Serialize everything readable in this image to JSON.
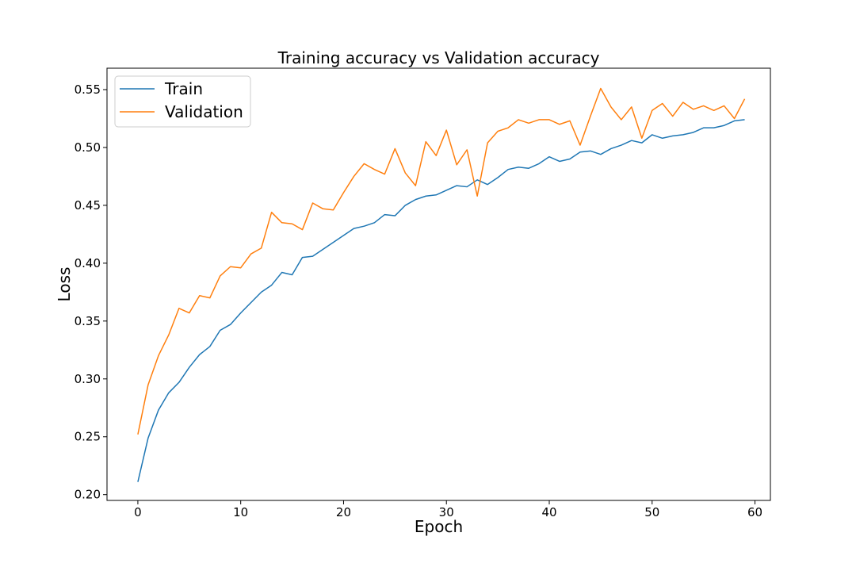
{
  "chart_data": {
    "type": "line",
    "title": "Training accuracy vs Validation accuracy",
    "xlabel": "Epoch",
    "ylabel": "Loss",
    "xlim": [
      -3,
      61.5
    ],
    "ylim": [
      0.195,
      0.5685
    ],
    "xticks": [
      0,
      10,
      20,
      30,
      40,
      50,
      60
    ],
    "yticks": [
      0.2,
      0.25,
      0.3,
      0.35,
      0.4,
      0.45,
      0.5,
      0.55
    ],
    "ytick_labels": [
      "0.20",
      "0.25",
      "0.30",
      "0.35",
      "0.40",
      "0.45",
      "0.50",
      "0.55"
    ],
    "grid": false,
    "legend": "top-left",
    "x": [
      0,
      1,
      2,
      3,
      4,
      5,
      6,
      7,
      8,
      9,
      10,
      11,
      12,
      13,
      14,
      15,
      16,
      17,
      18,
      19,
      20,
      21,
      22,
      23,
      24,
      25,
      26,
      27,
      28,
      29,
      30,
      31,
      32,
      33,
      34,
      35,
      36,
      37,
      38,
      39,
      40,
      41,
      42,
      43,
      44,
      45,
      46,
      47,
      48,
      49,
      50,
      51,
      52,
      53,
      54,
      55,
      56,
      57,
      58,
      59
    ],
    "series": [
      {
        "name": "Train",
        "color": "#1f77b4",
        "values": [
          0.211,
          0.249,
          0.273,
          0.288,
          0.297,
          0.31,
          0.321,
          0.328,
          0.342,
          0.347,
          0.357,
          0.366,
          0.375,
          0.381,
          0.392,
          0.39,
          0.405,
          0.406,
          0.412,
          0.418,
          0.424,
          0.43,
          0.432,
          0.435,
          0.442,
          0.441,
          0.45,
          0.455,
          0.458,
          0.459,
          0.463,
          0.467,
          0.466,
          0.472,
          0.468,
          0.474,
          0.481,
          0.483,
          0.482,
          0.486,
          0.492,
          0.488,
          0.49,
          0.496,
          0.497,
          0.494,
          0.499,
          0.502,
          0.506,
          0.504,
          0.511,
          0.508,
          0.51,
          0.511,
          0.513,
          0.517,
          0.517,
          0.519,
          0.523,
          0.524
        ]
      },
      {
        "name": "Validation",
        "color": "#ff7f0e",
        "values": [
          0.252,
          0.295,
          0.32,
          0.338,
          0.361,
          0.357,
          0.372,
          0.37,
          0.389,
          0.397,
          0.396,
          0.408,
          0.413,
          0.444,
          0.435,
          0.434,
          0.429,
          0.452,
          0.447,
          0.446,
          0.461,
          0.475,
          0.486,
          0.481,
          0.477,
          0.499,
          0.478,
          0.467,
          0.505,
          0.493,
          0.515,
          0.485,
          0.498,
          0.458,
          0.504,
          0.514,
          0.517,
          0.524,
          0.521,
          0.524,
          0.524,
          0.52,
          0.523,
          0.502,
          0.527,
          0.551,
          0.535,
          0.524,
          0.535,
          0.508,
          0.532,
          0.538,
          0.527,
          0.539,
          0.533,
          0.536,
          0.532,
          0.536,
          0.525,
          0.542
        ]
      }
    ]
  }
}
